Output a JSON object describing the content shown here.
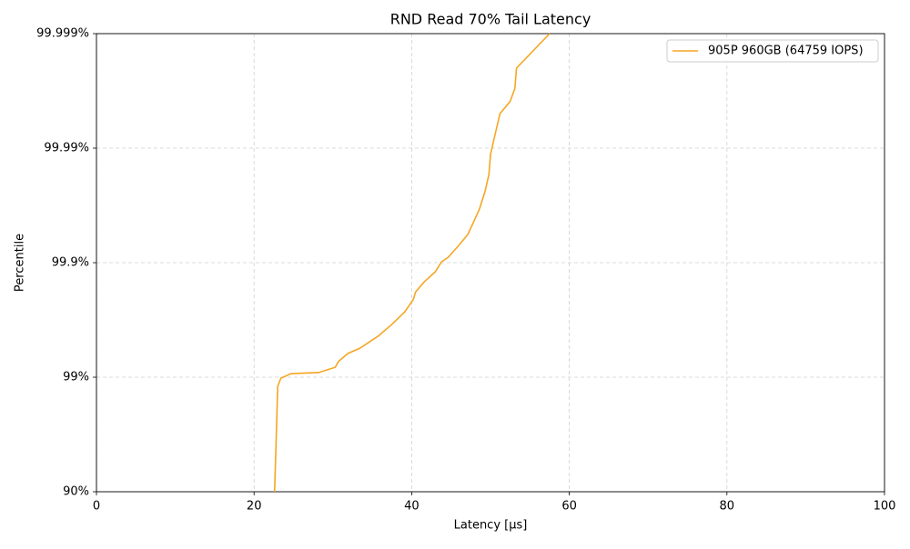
{
  "chart_data": {
    "type": "line",
    "title": "RND Read 70% Tail Latency",
    "x_label": "Latency [µs]",
    "y_label": "Percentile",
    "yscale": "nines",
    "grid": true,
    "legend": "upper right",
    "xlim": [
      0,
      100
    ],
    "xticks": [
      0,
      20,
      40,
      60,
      80,
      100
    ],
    "ylim": [
      90,
      99.999
    ],
    "yticks": [
      {
        "value": 90,
        "label": "90%"
      },
      {
        "value": 99,
        "label": "99%"
      },
      {
        "value": 99.9,
        "label": "99.9%"
      },
      {
        "value": 99.99,
        "label": "99.99%"
      },
      {
        "value": 99.999,
        "label": "99.999%"
      }
    ],
    "x": [
      22.6,
      22.75,
      23.0,
      23.4,
      24.7,
      28.2,
      30.3,
      30.7,
      31.9,
      33.4,
      35.7,
      37.4,
      39.1,
      40.2,
      40.5,
      41.6,
      43.0,
      43.8,
      44.6,
      45.8,
      47.1,
      47.8,
      48.6,
      49.3,
      49.8,
      50.0,
      50.4,
      51.2,
      52.5,
      53.1,
      53.3,
      57.5
    ],
    "series": [
      {
        "name": "905P 960GB (64759 IOPS)",
        "color": "#f5a623",
        "values": [
          90,
          95.27,
          98.8,
          98.98,
          99.07,
          99.09,
          99.18,
          99.27,
          99.38,
          99.44,
          99.56,
          99.65,
          99.73,
          99.79,
          99.82,
          99.853,
          99.88,
          99.902,
          99.91,
          99.927,
          99.943,
          99.955,
          99.966,
          99.976,
          99.983,
          99.9886,
          99.9914,
          99.995,
          99.9961,
          99.997,
          99.998,
          99.999
        ]
      }
    ]
  }
}
